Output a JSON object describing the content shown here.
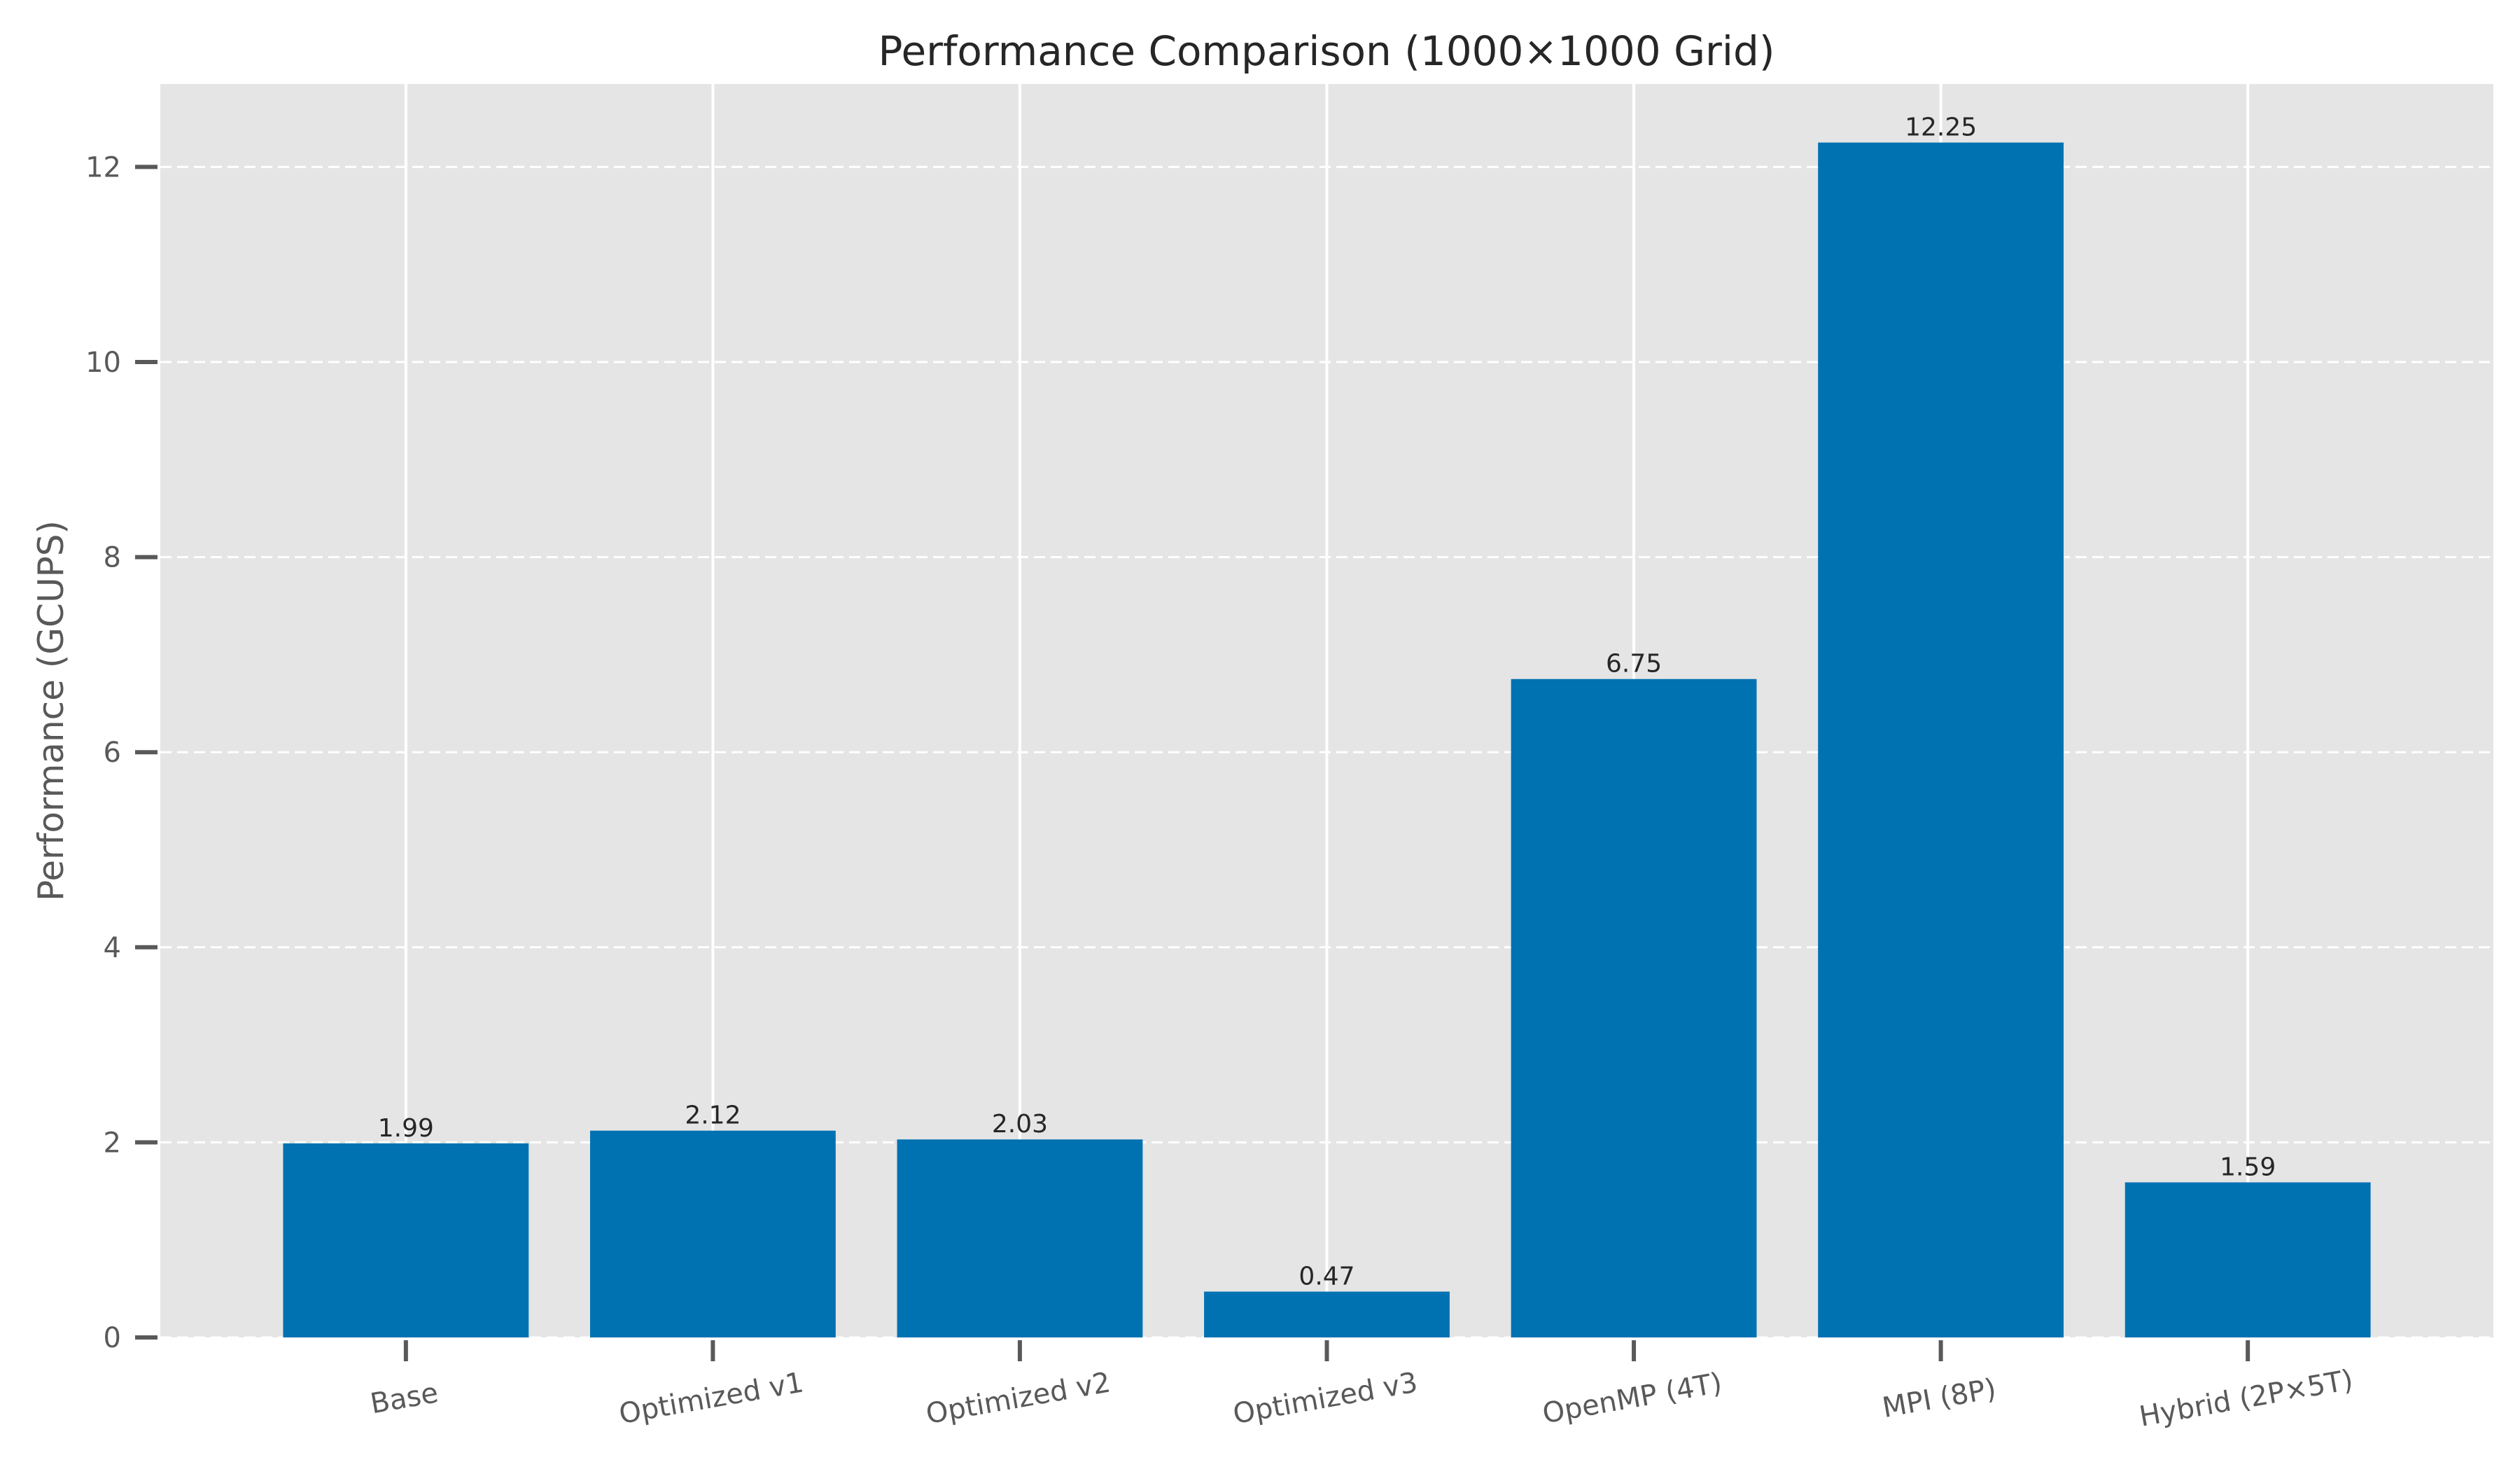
{
  "chart_data": {
    "type": "bar",
    "title": "Performance Comparison (1000×1000 Grid)",
    "xlabel": "",
    "ylabel": "Performance (GCUPS)",
    "categories": [
      "Base",
      "Optimized v1",
      "Optimized v2",
      "Optimized v3",
      "OpenMP (4T)",
      "MPI (8P)",
      "Hybrid (2P×5T)"
    ],
    "values": [
      1.99,
      2.12,
      2.03,
      0.47,
      6.75,
      12.25,
      1.59
    ],
    "value_labels": [
      "1.99",
      "2.12",
      "2.03",
      "0.47",
      "6.75",
      "12.25",
      "1.59"
    ],
    "ylim": [
      0,
      12.85
    ],
    "yticks": [
      0,
      2,
      4,
      6,
      8,
      10,
      12
    ],
    "ytick_labels": [
      "0",
      "2",
      "4",
      "6",
      "8",
      "10",
      "12"
    ],
    "grid": {
      "y": "dashed",
      "x": "solid"
    },
    "x_tick_rotation": "slight",
    "colors": {
      "bar": "#0072b2",
      "background": "#e5e5e5",
      "grid": "#ffffff",
      "tick": "#595959"
    }
  }
}
